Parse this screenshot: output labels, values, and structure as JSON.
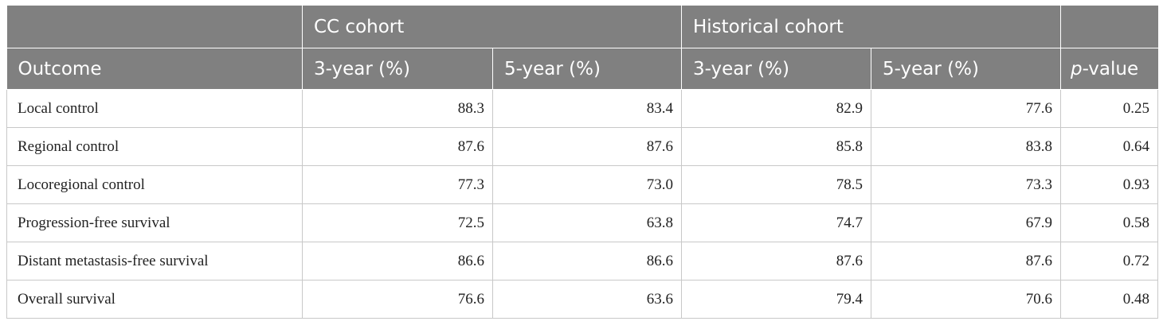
{
  "table": {
    "group_headers": [
      "",
      "CC cohort",
      "Historical cohort",
      ""
    ],
    "column_headers": {
      "outcome": "Outcome",
      "cc_3yr": "3-year (%)",
      "cc_5yr": "5-year (%)",
      "hist_3yr": "3-year (%)",
      "hist_5yr": "5-year (%)",
      "p_prefix": "p",
      "p_suffix": "-value"
    },
    "rows": [
      {
        "outcome": "Local control",
        "cc_3yr": "88.3",
        "cc_5yr": "83.4",
        "hist_3yr": "82.9",
        "hist_5yr": "77.6",
        "p": "0.25"
      },
      {
        "outcome": "Regional control",
        "cc_3yr": "87.6",
        "cc_5yr": "87.6",
        "hist_3yr": "85.8",
        "hist_5yr": "83.8",
        "p": "0.64"
      },
      {
        "outcome": "Locoregional control",
        "cc_3yr": "77.3",
        "cc_5yr": "73.0",
        "hist_3yr": "78.5",
        "hist_5yr": "73.3",
        "p": "0.93"
      },
      {
        "outcome": "Progression-free survival",
        "cc_3yr": "72.5",
        "cc_5yr": "63.8",
        "hist_3yr": "74.7",
        "hist_5yr": "67.9",
        "p": "0.58"
      },
      {
        "outcome": "Distant metastasis-free survival",
        "cc_3yr": "86.6",
        "cc_5yr": "86.6",
        "hist_3yr": "87.6",
        "hist_5yr": "87.6",
        "p": "0.72"
      },
      {
        "outcome": "Overall survival",
        "cc_3yr": "76.6",
        "cc_5yr": "63.6",
        "hist_3yr": "79.4",
        "hist_5yr": "70.6",
        "p": "0.48"
      }
    ]
  },
  "colors": {
    "header_background": "#808080",
    "header_text": "#ffffff",
    "grid_line": "#c8c8c8",
    "body_text": "#222222"
  }
}
